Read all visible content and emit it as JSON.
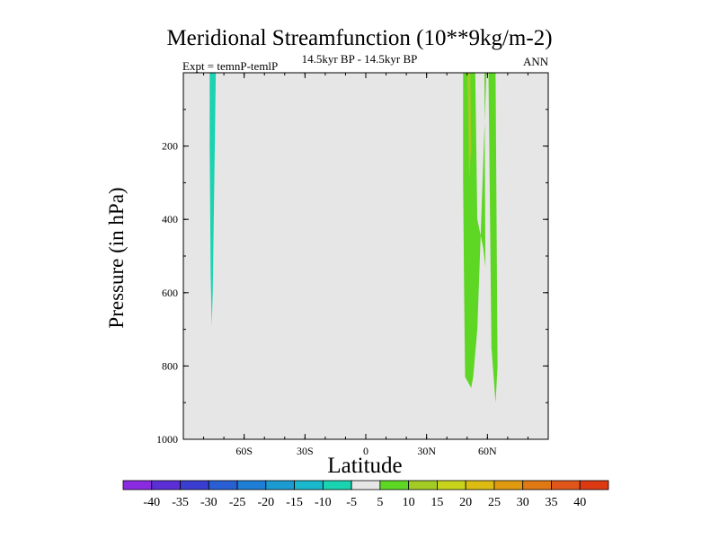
{
  "chart_data": {
    "type": "contour",
    "title": "Meridional Streamfunction (10**9kg/m-2)",
    "subtitle": "14.5kyr BP - 14.5kyr BP",
    "experiment": "Expt = temnP-temlP",
    "season": "ANN",
    "xlabel": "Latitude",
    "ylabel": "Pressure (in hPa)",
    "xlim": [
      -90,
      90
    ],
    "ylim": [
      1000,
      0
    ],
    "x_ticks": [
      {
        "value": -60,
        "label": "60S"
      },
      {
        "value": -30,
        "label": "30S"
      },
      {
        "value": 0,
        "label": "0"
      },
      {
        "value": 30,
        "label": "30N"
      },
      {
        "value": 60,
        "label": "60N"
      }
    ],
    "y_ticks": [
      {
        "value": 200,
        "label": "200"
      },
      {
        "value": 400,
        "label": "400"
      },
      {
        "value": 600,
        "label": "600"
      },
      {
        "value": 800,
        "label": "800"
      },
      {
        "value": 1000,
        "label": "1000"
      }
    ],
    "background_color": "#e6e6e6",
    "regions": [
      {
        "name": "southern-negative-cell",
        "level": -5,
        "color": "#1ad3b0",
        "polygon": [
          [
            -77,
            0
          ],
          [
            -74,
            0
          ],
          [
            -74.5,
            200
          ],
          [
            -75.5,
            600
          ],
          [
            -76,
            690
          ],
          [
            -76.5,
            550
          ],
          [
            -77,
            200
          ]
        ]
      },
      {
        "name": "northern-positive-cell",
        "level": 5,
        "color": "#5ed624",
        "polygon": [
          [
            48,
            0
          ],
          [
            54,
            0
          ],
          [
            55,
            400
          ],
          [
            58,
            480
          ],
          [
            59,
            530
          ],
          [
            58.5,
            0
          ],
          [
            64,
            0
          ],
          [
            65,
            800
          ],
          [
            64,
            900
          ],
          [
            62,
            750
          ],
          [
            60.5,
            0
          ],
          [
            59.5,
            0
          ],
          [
            55,
            700
          ],
          [
            53,
            830
          ],
          [
            52,
            860
          ],
          [
            49,
            830
          ],
          [
            48.5,
            600
          ],
          [
            48,
            300
          ]
        ]
      },
      {
        "name": "northern-core-cell",
        "level": 10,
        "color": "#a2cc24",
        "polygon": [
          [
            50,
            0
          ],
          [
            51.5,
            0
          ],
          [
            52,
            200
          ],
          [
            51,
            300
          ],
          [
            50.5,
            120
          ]
        ]
      }
    ],
    "colorbar": {
      "levels": [
        -40,
        -35,
        -30,
        -25,
        -20,
        -15,
        -10,
        -5,
        5,
        10,
        15,
        20,
        25,
        30,
        35,
        40
      ],
      "colors": [
        "#8a2be2",
        "#5c2ed6",
        "#3a3ed0",
        "#2a5fd4",
        "#1f7fd6",
        "#1c9bd2",
        "#19b8cc",
        "#1ad3b0",
        "#e6e6e6",
        "#5ed624",
        "#a2cc24",
        "#c8d41c",
        "#dcbc12",
        "#e09a10",
        "#e07814",
        "#e0561a",
        "#dd3a14"
      ]
    }
  }
}
